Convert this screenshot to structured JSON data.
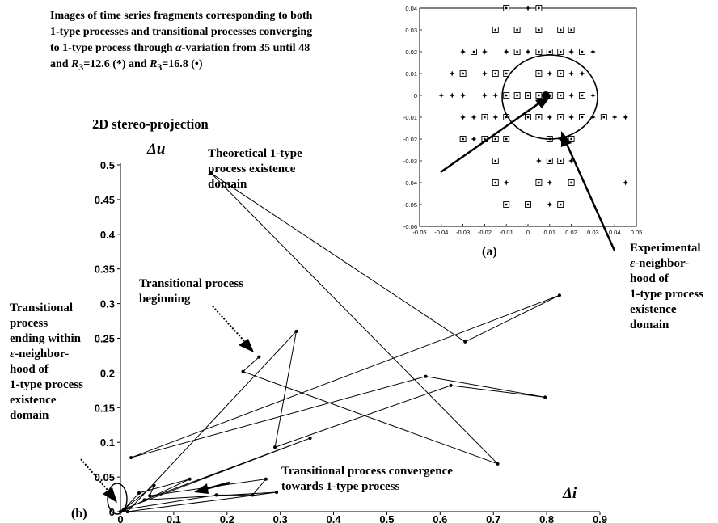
{
  "caption": {
    "line1": "Images of time series fragments corresponding to both",
    "line2": "1-type processes and transitional processes converging",
    "line3_a": "to 1-type process through ",
    "line3_alpha": "α",
    "line3_b": "-variation from 35 until 48",
    "line4_a": "and ",
    "line4_r1": "R",
    "line4_sub1": "3",
    "line4_b": "=12.6   (*)  and ",
    "line4_r2": "R",
    "line4_sub2": "3",
    "line4_c": "=16.8 (•)"
  },
  "heading": "2D stereo-projection",
  "annotations": {
    "theoretical": [
      "Theoretical 1-type",
      "process  existence",
      "domain"
    ],
    "experimental_1": "Experimental",
    "experimental_eps": "ε",
    "experimental_2": "-neighbor-",
    "experimental_3": "hood of",
    "experimental_4": "1-type process",
    "experimental_5": "existence",
    "experimental_6": "domain",
    "trans_begin": [
      "Transitional process",
      "beginning"
    ],
    "trans_end_1": "Transitional",
    "trans_end_2": "process",
    "trans_end_3": "ending within",
    "trans_end_eps": "ε",
    "trans_end_4": "-neighbor-",
    "trans_end_5": "hood of",
    "trans_end_6": "1-type process",
    "trans_end_7": "existence",
    "trans_end_8": "domain",
    "convergence": [
      "Transitional process convergence",
      "towards  1-type process"
    ]
  },
  "chart_data": [
    {
      "panel": "(a)",
      "type": "scatter",
      "xlim": [
        -0.05,
        0.05
      ],
      "ylim": [
        -0.06,
        0.04
      ],
      "xticks": [
        "-0.05",
        "-0.04",
        "-0.03",
        "-0.02",
        "-0.01",
        "0",
        "0.01",
        "0.02",
        "0.03",
        "0.04",
        "0.05"
      ],
      "yticks": [
        "0.04",
        "0.03",
        "0.02",
        "0.01",
        "0",
        "-0.01",
        "-0.02",
        "-0.03",
        "-0.04",
        "-0.05",
        "-0.06"
      ],
      "series": [
        {
          "marker": "star",
          "points": [
            [
              -0.01,
              0.04
            ],
            [
              0.0,
              0.04
            ],
            [
              -0.03,
              0.02
            ],
            [
              -0.02,
              0.02
            ],
            [
              -0.01,
              0.02
            ],
            [
              0.0,
              0.02
            ],
            [
              0.02,
              0.02
            ],
            [
              0.03,
              0.02
            ],
            [
              -0.035,
              0.01
            ],
            [
              -0.02,
              0.01
            ],
            [
              -0.01,
              0.01
            ],
            [
              0.01,
              0.01
            ],
            [
              0.02,
              0.01
            ],
            [
              0.025,
              0.01
            ],
            [
              -0.04,
              0.0
            ],
            [
              -0.035,
              0.0
            ],
            [
              -0.03,
              0.0
            ],
            [
              -0.02,
              0.0
            ],
            [
              -0.015,
              0.0
            ],
            [
              -0.005,
              0.0
            ],
            [
              0.005,
              0.0
            ],
            [
              0.01,
              0.0
            ],
            [
              0.015,
              0.0
            ],
            [
              0.02,
              0.0
            ],
            [
              0.03,
              0.0
            ],
            [
              -0.03,
              -0.01
            ],
            [
              -0.025,
              -0.01
            ],
            [
              -0.02,
              -0.01
            ],
            [
              -0.015,
              -0.01
            ],
            [
              -0.01,
              -0.01
            ],
            [
              0.005,
              -0.01
            ],
            [
              0.01,
              -0.01
            ],
            [
              0.015,
              -0.01
            ],
            [
              0.02,
              -0.01
            ],
            [
              0.03,
              -0.01
            ],
            [
              0.04,
              -0.01
            ],
            [
              0.045,
              -0.01
            ],
            [
              -0.025,
              -0.02
            ],
            [
              -0.02,
              -0.02
            ],
            [
              -0.01,
              -0.02
            ],
            [
              0.01,
              -0.02
            ],
            [
              0.015,
              -0.02
            ],
            [
              0.02,
              -0.02
            ],
            [
              0.005,
              -0.03
            ],
            [
              0.01,
              -0.03
            ],
            [
              0.02,
              -0.03
            ],
            [
              -0.01,
              -0.04
            ],
            [
              0.01,
              -0.04
            ],
            [
              0.02,
              -0.04
            ],
            [
              0.045,
              -0.04
            ],
            [
              0.01,
              -0.05
            ],
            [
              0.015,
              -0.05
            ]
          ]
        },
        {
          "marker": "square",
          "points": [
            [
              -0.01,
              0.04
            ],
            [
              0.005,
              0.04
            ],
            [
              -0.015,
              0.03
            ],
            [
              -0.005,
              0.03
            ],
            [
              0.005,
              0.03
            ],
            [
              0.015,
              0.03
            ],
            [
              0.02,
              0.03
            ],
            [
              -0.025,
              0.02
            ],
            [
              -0.005,
              0.02
            ],
            [
              0.005,
              0.02
            ],
            [
              0.01,
              0.02
            ],
            [
              0.015,
              0.02
            ],
            [
              0.025,
              0.02
            ],
            [
              -0.03,
              0.01
            ],
            [
              -0.015,
              0.01
            ],
            [
              -0.01,
              0.01
            ],
            [
              0.005,
              0.01
            ],
            [
              0.015,
              0.01
            ],
            [
              -0.01,
              0.0
            ],
            [
              -0.005,
              0.0
            ],
            [
              0.0,
              0.0
            ],
            [
              0.005,
              0.0
            ],
            [
              0.01,
              0.0
            ],
            [
              0.015,
              0.0
            ],
            [
              0.025,
              0.0
            ],
            [
              -0.02,
              -0.01
            ],
            [
              -0.01,
              -0.01
            ],
            [
              0.0,
              -0.01
            ],
            [
              0.005,
              -0.01
            ],
            [
              0.015,
              -0.01
            ],
            [
              0.025,
              -0.01
            ],
            [
              0.035,
              -0.01
            ],
            [
              -0.03,
              -0.02
            ],
            [
              -0.02,
              -0.02
            ],
            [
              -0.015,
              -0.02
            ],
            [
              -0.01,
              -0.02
            ],
            [
              0.01,
              -0.02
            ],
            [
              0.02,
              -0.02
            ],
            [
              -0.015,
              -0.03
            ],
            [
              0.01,
              -0.03
            ],
            [
              0.015,
              -0.03
            ],
            [
              -0.015,
              -0.04
            ],
            [
              0.005,
              -0.04
            ],
            [
              0.02,
              -0.04
            ],
            [
              -0.01,
              -0.05
            ],
            [
              0.0,
              -0.05
            ],
            [
              0.015,
              -0.05
            ]
          ]
        }
      ]
    },
    {
      "panel": "(b)",
      "type": "line",
      "xlabel": "Δi",
      "ylabel": "Δu",
      "xlim": [
        0,
        0.9
      ],
      "ylim": [
        0,
        0.5
      ],
      "xticks": [
        "0",
        "0.1",
        "0.2",
        "0.3",
        "0.4",
        "0.5",
        "0.6",
        "0.7",
        "0.8",
        "0.9"
      ],
      "yticks": [
        "0",
        "0.05",
        "0.1",
        "0.15",
        "0.2",
        "0.25",
        "0.3",
        "0.35",
        "0.4",
        "0.45",
        "0.5"
      ],
      "points": [
        [
          0.26,
          0.223
        ],
        [
          0.23,
          0.202
        ],
        [
          0.708,
          0.069
        ],
        [
          0.17,
          0.488
        ],
        [
          0.647,
          0.245
        ],
        [
          0.824,
          0.312
        ],
        [
          0.02,
          0.078
        ],
        [
          0.573,
          0.195
        ],
        [
          0.797,
          0.165
        ],
        [
          0.62,
          0.182
        ],
        [
          0.29,
          0.093
        ],
        [
          0.33,
          0.26
        ],
        [
          0.013,
          0.0
        ],
        [
          0.293,
          0.028
        ],
        [
          0.045,
          0.017
        ],
        [
          0.356,
          0.106
        ],
        [
          0.007,
          0.004
        ],
        [
          0.063,
          0.038
        ],
        [
          0.055,
          0.023
        ],
        [
          0.273,
          0.047
        ],
        [
          0.248,
          0.024
        ],
        [
          0.18,
          0.024
        ],
        [
          0.008,
          0.003
        ],
        [
          0.13,
          0.047
        ],
        [
          0.035,
          0.027
        ],
        [
          0.005,
          0.002
        ],
        [
          0.0,
          0.0
        ]
      ]
    }
  ]
}
